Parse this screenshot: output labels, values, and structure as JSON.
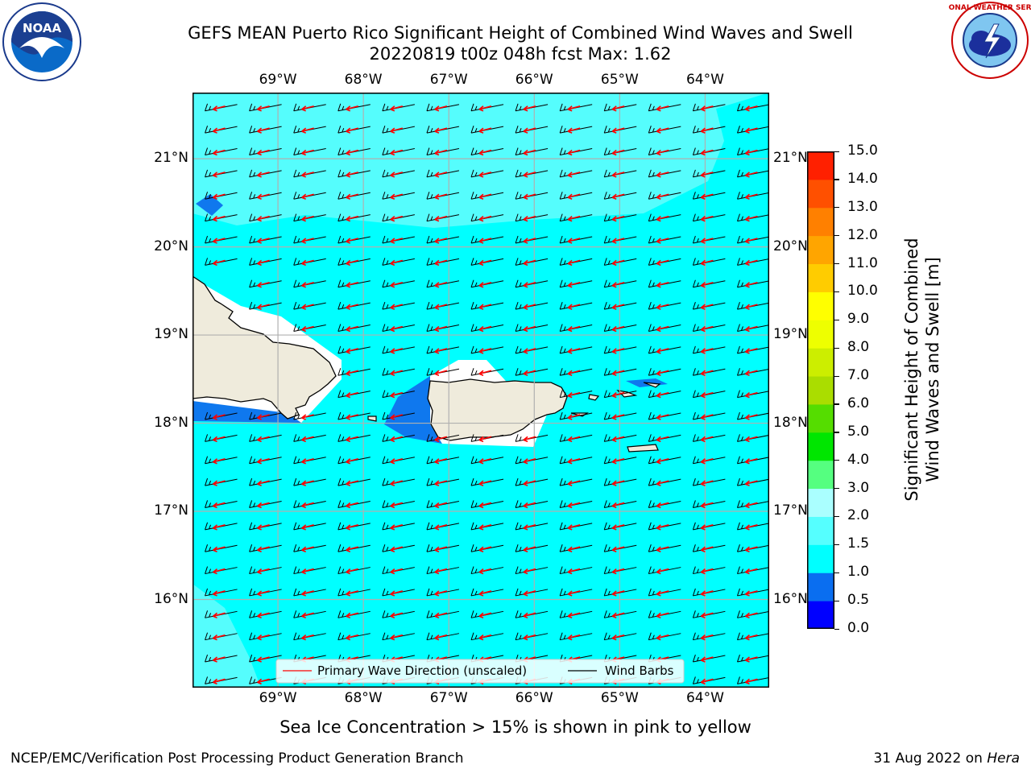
{
  "header": {
    "title_line1": "GEFS MEAN Puerto Rico Significant Height of Combined Wind Waves and Swell",
    "title_line2": "20220819 t00z 048h fcst   Max: 1.62"
  },
  "logos": {
    "left": {
      "icon": "noaa-logo",
      "text": "NOAA"
    },
    "right": {
      "icon": "nws-logo",
      "text": "NATIONAL WEATHER SERVICE"
    }
  },
  "map": {
    "lon_ticks": [
      "69°W",
      "68°W",
      "67°W",
      "66°W",
      "65°W",
      "64°W"
    ],
    "lat_ticks": [
      "21°N",
      "20°N",
      "19°N",
      "18°N",
      "17°N",
      "16°N"
    ],
    "lon_range": [
      -70.0,
      -63.25
    ],
    "lat_range": [
      15.0,
      21.75
    ],
    "lon_values": [
      -69,
      -68,
      -67,
      -66,
      -65,
      -64
    ],
    "lat_values": [
      21,
      20,
      19,
      18,
      17,
      16
    ],
    "colors": {
      "sea": "#00ffff",
      "sea_light": "#55fdfd",
      "wave_low": "#0f78ee",
      "land": "#efebdc",
      "barb": "#000000",
      "arrow": "#ff0000",
      "grid": "#b0b0b0"
    },
    "legend": {
      "primary_wave": "Primary Wave Direction (unscaled)",
      "wind_barbs": "Wind Barbs"
    }
  },
  "colorbar": {
    "label_line1": "Significant Height of Combined",
    "label_line2": "Wind Waves and Swell [m]",
    "ticks": [
      "0.0",
      "0.5",
      "1.0",
      "1.5",
      "2.0",
      "3.0",
      "4.0",
      "5.0",
      "6.0",
      "7.0",
      "8.0",
      "9.0",
      "10.0",
      "11.0",
      "12.0",
      "13.0",
      "14.0",
      "15.0"
    ],
    "colors": [
      "#0000ff",
      "#0a6ef0",
      "#00ffff",
      "#55ffff",
      "#aaffff",
      "#55ff80",
      "#00e600",
      "#55dd00",
      "#aadd00",
      "#ccee00",
      "#eeff00",
      "#ffff00",
      "#ffcc00",
      "#ffa500",
      "#ff8000",
      "#ff5000",
      "#ff2000",
      "#ff0000"
    ]
  },
  "note": "Sea Ice Concentration > 15% is shown in pink to yellow",
  "footer": {
    "left": "NCEP/EMC/Verification Post Processing Product Generation Branch",
    "right_prefix": "31 Aug 2022 on ",
    "right_italic": "Hera"
  }
}
